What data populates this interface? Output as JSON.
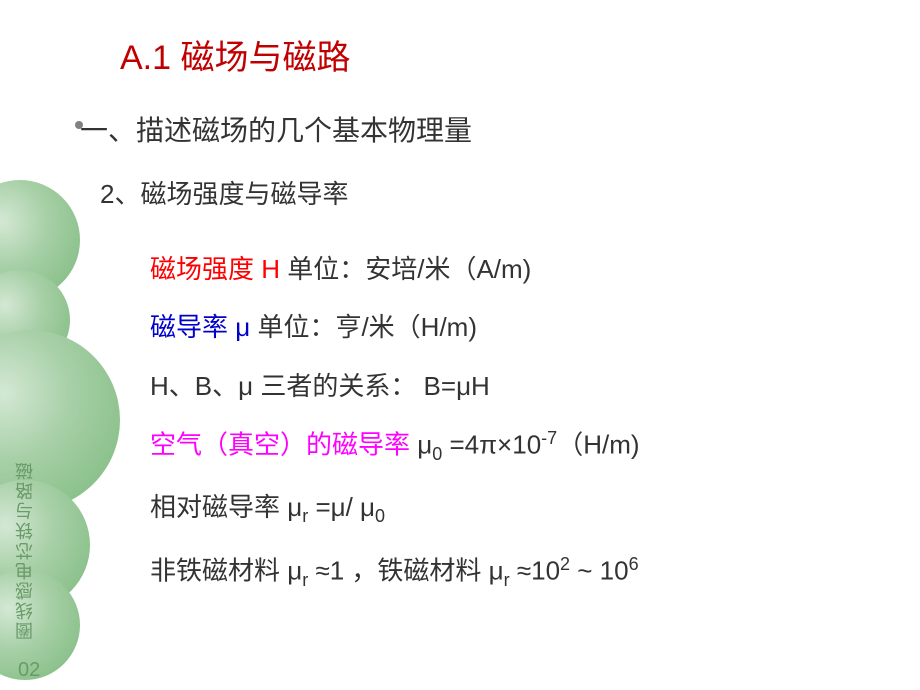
{
  "colors": {
    "title": "#c00000",
    "section1": "#333333",
    "section2": "#333333",
    "red_text": "#ff0000",
    "blue_text": "#0000cc",
    "magenta_text": "#ff00ff",
    "black_text": "#333333",
    "green_deco": "#7ab87a",
    "vertical_text": "#6a9a6a"
  },
  "title": "A.1  磁场与磁路",
  "section1": "一、描述磁场的几个基本物理量",
  "section2": "2、磁场强度与磁导率",
  "line1_red": "磁场强度 H",
  "line1_black": "     单位：安培/米（A/m)",
  "line2_blue": "磁导率 μ",
  "line2_black": "       单位：亨/米（H/m)",
  "line3": "H、B、μ  三者的关系：  B=μH",
  "line4_magenta": "空气（真空）的磁导率",
  "line4_black_a": "   μ",
  "line4_sub1": "0",
  "line4_black_b": " =4π×10",
  "line4_sup1": "-7",
  "line4_black_c": "（H/m)",
  "line5_a": "相对磁导率 μ",
  "line5_sub1": "r",
  "line5_b": " =μ/ μ",
  "line5_sub2": "0",
  "line6_a": "非铁磁材料 μ",
  "line6_sub1": "r",
  "line6_b": " ≈1    ，铁磁材料 μ",
  "line6_sub2": "r",
  "line6_c": " ≈10",
  "line6_sup1": "2",
  "line6_d": " ~ 10",
  "line6_sup2": "6",
  "vertical_label": "圈线感电芯铁与路磁",
  "page_number": "02"
}
